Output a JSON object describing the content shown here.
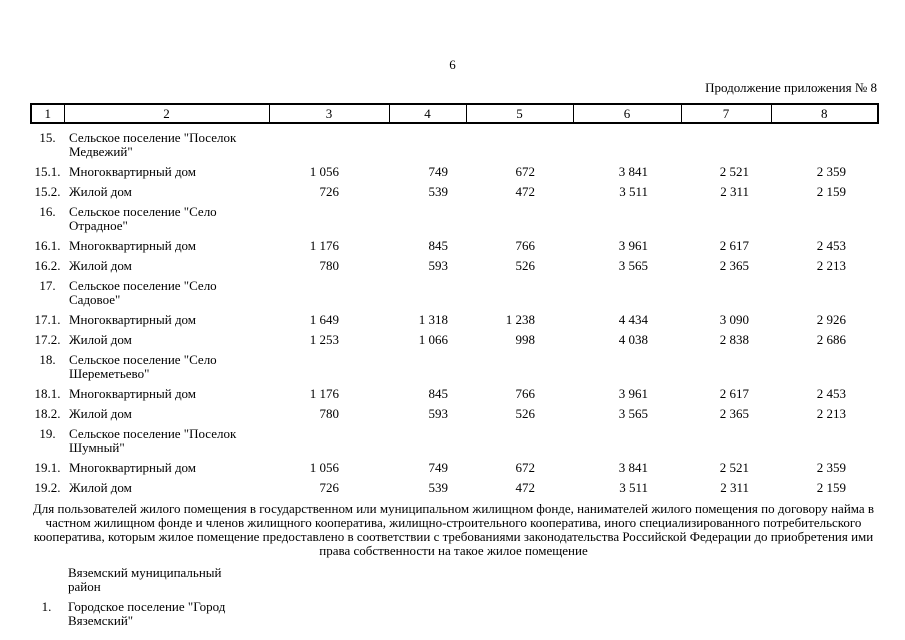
{
  "page": {
    "number": "6",
    "continuation": "Продолжение приложения № 8"
  },
  "table": {
    "columns": [
      "1",
      "2",
      "3",
      "4",
      "5",
      "6",
      "7",
      "8"
    ],
    "rows": [
      {
        "num": "15.",
        "name": "Сельское поселение \"Поселок Медвежий\"",
        "values": [
          "",
          "",
          "",
          "",
          "",
          ""
        ]
      },
      {
        "num": "15.1.",
        "name": "Многоквартирный дом",
        "values": [
          "1 056",
          "749",
          "672",
          "3 841",
          "2 521",
          "2 359"
        ]
      },
      {
        "num": "15.2.",
        "name": "Жилой дом",
        "values": [
          "726",
          "539",
          "472",
          "3 511",
          "2 311",
          "2 159"
        ]
      },
      {
        "num": "16.",
        "name": "Сельское поселение \"Село Отрадное\"",
        "values": [
          "",
          "",
          "",
          "",
          "",
          ""
        ]
      },
      {
        "num": "16.1.",
        "name": "Многоквартирный дом",
        "values": [
          "1 176",
          "845",
          "766",
          "3 961",
          "2 617",
          "2 453"
        ]
      },
      {
        "num": "16.2.",
        "name": "Жилой дом",
        "values": [
          "780",
          "593",
          "526",
          "3 565",
          "2 365",
          "2 213"
        ]
      },
      {
        "num": "17.",
        "name": "Сельское поселение \"Село Садовое\"",
        "values": [
          "",
          "",
          "",
          "",
          "",
          ""
        ]
      },
      {
        "num": "17.1.",
        "name": "Многоквартирный дом",
        "values": [
          "1 649",
          "1 318",
          "1 238",
          "4 434",
          "3 090",
          "2 926"
        ]
      },
      {
        "num": "17.2.",
        "name": "Жилой дом",
        "values": [
          "1 253",
          "1 066",
          "998",
          "4 038",
          "2 838",
          "2 686"
        ]
      },
      {
        "num": "18.",
        "name": "Сельское поселение \"Село Шереметьево\"",
        "values": [
          "",
          "",
          "",
          "",
          "",
          ""
        ]
      },
      {
        "num": "18.1.",
        "name": "Многоквартирный дом",
        "values": [
          "1 176",
          "845",
          "766",
          "3 961",
          "2 617",
          "2 453"
        ]
      },
      {
        "num": "18.2.",
        "name": "Жилой дом",
        "values": [
          "780",
          "593",
          "526",
          "3 565",
          "2 365",
          "2 213"
        ]
      },
      {
        "num": "19.",
        "name": "Сельское поселение \"Поселок Шумный\"",
        "values": [
          "",
          "",
          "",
          "",
          "",
          ""
        ]
      },
      {
        "num": "19.1.",
        "name": "Многоквартирный дом",
        "values": [
          "1 056",
          "749",
          "672",
          "3 841",
          "2 521",
          "2 359"
        ]
      },
      {
        "num": "19.2.",
        "name": "Жилой дом",
        "values": [
          "726",
          "539",
          "472",
          "3 511",
          "2 311",
          "2 159"
        ]
      }
    ]
  },
  "note": "Для пользователей жилого помещения в государственном или муниципальном жилищном фонде, нанимателей жилого помещения по договору найма в частном жилищном фонде и членов жилищного кооператива, жилищно-строительного кооператива, иного специализированного потребительского кооператива, которым жилое помещение предоставлено в соответствии с требованиями законодательства Российской Федерации до приобретения ими права собственности на такое жилое помещение",
  "footer_rows": [
    {
      "num": "",
      "name": "Вяземский муниципальный район"
    },
    {
      "num": "1.",
      "name": "Городское поселение \"Город Вяземский\""
    }
  ]
}
